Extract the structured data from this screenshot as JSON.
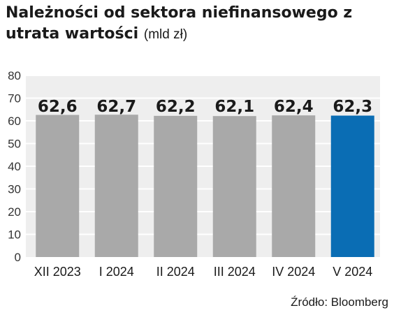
{
  "chart_data": {
    "type": "bar",
    "title": "Należności od sektora niefinansowego z utrata wartości",
    "unit": "(mld zł)",
    "categories": [
      "XII 2023",
      "I 2024",
      "II 2024",
      "III 2024",
      "IV 2024",
      "V 2024"
    ],
    "values": [
      62.6,
      62.7,
      62.2,
      62.1,
      62.4,
      62.3
    ],
    "value_labels": [
      "62,6",
      "62,7",
      "62,2",
      "62,1",
      "62,4",
      "62,3"
    ],
    "ylim": [
      0,
      80
    ],
    "yticks": [
      0,
      10,
      20,
      30,
      40,
      50,
      60,
      70,
      80
    ],
    "grid": true,
    "xlabel": "",
    "ylabel": "",
    "source": "Źródło: Bloomberg"
  },
  "colors": {
    "bar": "#a9a9a9",
    "highlight_bar": "#0a6db4",
    "plot_background": "#eeeeee",
    "gridline": "#ffffff"
  },
  "highlight_index": 5
}
